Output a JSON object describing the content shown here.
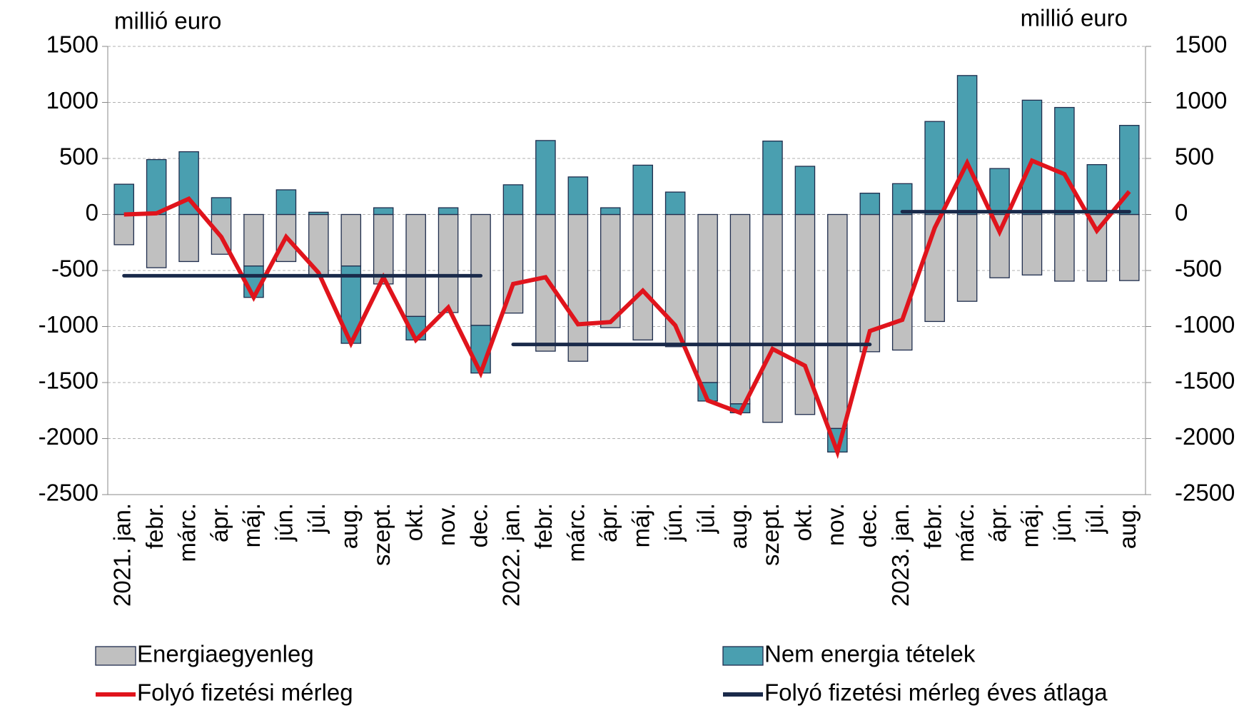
{
  "chart_data": {
    "type": "bar",
    "y_axis_label": "millió euro",
    "y2_axis_label": "millió euro",
    "categories": [
      "2021. jan.",
      "febr.",
      "márc.",
      "ápr.",
      "máj.",
      "jún.",
      "júl.",
      "aug.",
      "szept.",
      "okt.",
      "nov.",
      "dec.",
      "2022. jan.",
      "febr.",
      "márc.",
      "ápr.",
      "máj.",
      "jún.",
      "júl.",
      "aug.",
      "szept.",
      "okt.",
      "nov.",
      "dec.",
      "2023. jan.",
      "febr.",
      "márc.",
      "ápr.",
      "máj.",
      "jún.",
      "júl.",
      "aug."
    ],
    "series": [
      {
        "name": "Energiaegyenleg",
        "type": "bar",
        "color": "#c0c0c0",
        "values": [
          -270,
          -475,
          -420,
          -355,
          -460,
          -420,
          -540,
          -460,
          -620,
          -910,
          -875,
          -990,
          -880,
          -1220,
          -1310,
          -1010,
          -1120,
          -1180,
          -1500,
          -1690,
          -1855,
          -1785,
          -1910,
          -1225,
          -1210,
          -955,
          -775,
          -565,
          -540,
          -595,
          -595,
          -590
        ]
      },
      {
        "name": "Nem energia tételek",
        "type": "bar",
        "color": "#4a9fb0",
        "values": [
          270,
          490,
          560,
          150,
          -280,
          220,
          20,
          -690,
          60,
          -210,
          60,
          -425,
          265,
          660,
          335,
          60,
          440,
          200,
          -165,
          -80,
          655,
          430,
          -210,
          190,
          275,
          830,
          1240,
          410,
          1020,
          955,
          445,
          795
        ]
      },
      {
        "name": "Folyó fizetési mérleg",
        "type": "line",
        "color": "#e0141c",
        "values": [
          0,
          10,
          140,
          -200,
          -740,
          -200,
          -520,
          -1150,
          -560,
          -1120,
          -830,
          -1415,
          -620,
          -560,
          -980,
          -960,
          -680,
          -990,
          -1660,
          -1770,
          -1200,
          -1350,
          -2120,
          -1040,
          -940,
          -120,
          460,
          -155,
          480,
          360,
          -145,
          205
        ]
      },
      {
        "name": "Folyó fizetési mérleg éves átlaga",
        "type": "line",
        "color": "#1a2a4a",
        "values": [
          -547,
          -547,
          -547,
          -547,
          -547,
          -547,
          -547,
          -547,
          -547,
          -547,
          -547,
          -547,
          -1160,
          -1160,
          -1160,
          -1160,
          -1160,
          -1160,
          -1160,
          -1160,
          -1160,
          -1160,
          -1160,
          -1160,
          25,
          25,
          25,
          25,
          25,
          25,
          25,
          25
        ]
      }
    ],
    "ylim": [
      -2500,
      1500
    ],
    "yticks": [
      -2500,
      -2000,
      -1500,
      -1000,
      -500,
      0,
      500,
      1000,
      1500
    ],
    "y2lim": [
      -2500,
      1500
    ],
    "y2ticks": [
      -2500,
      -2000,
      -1500,
      -1000,
      -500,
      0,
      500,
      1000,
      1500
    ],
    "grid": true
  }
}
